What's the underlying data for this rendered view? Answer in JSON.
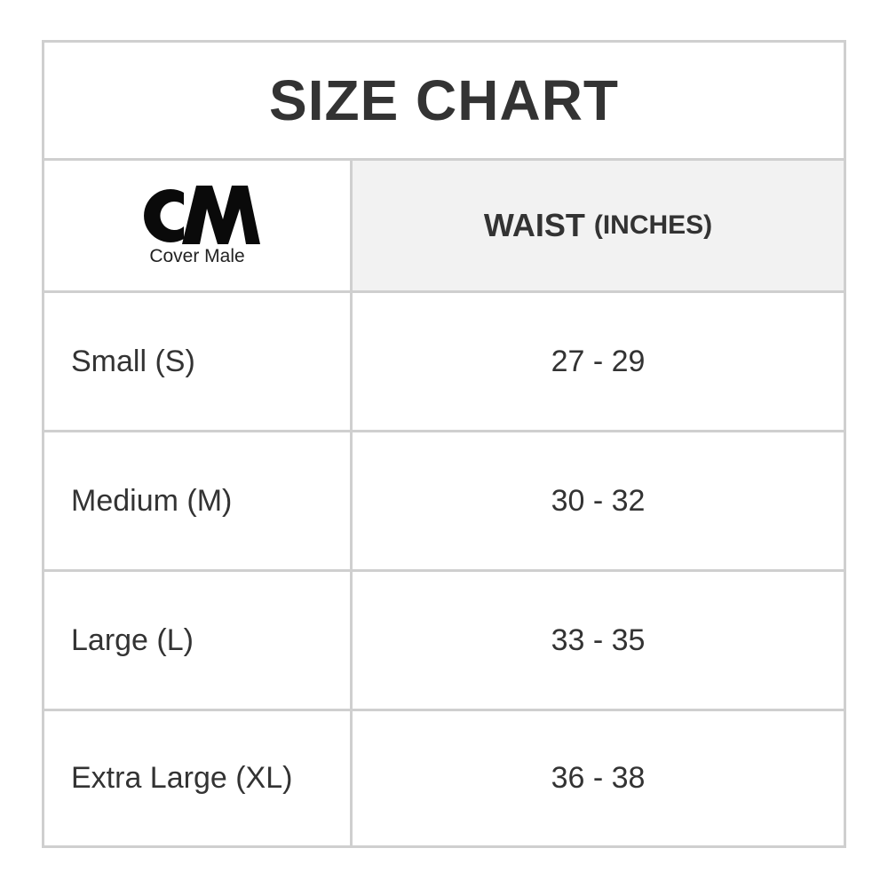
{
  "title": "SIZE CHART",
  "logo": {
    "mark": "CM",
    "name": "Cover Male"
  },
  "header": {
    "measure": "WAIST",
    "unit": "(INCHES)"
  },
  "rows": [
    {
      "size": "Small (S)",
      "waist": "27 - 29"
    },
    {
      "size": "Medium (M)",
      "waist": "30 - 32"
    },
    {
      "size": "Large (L)",
      "waist": "33 - 35"
    },
    {
      "size": "Extra Large (XL)",
      "waist": "36 - 38"
    }
  ]
}
